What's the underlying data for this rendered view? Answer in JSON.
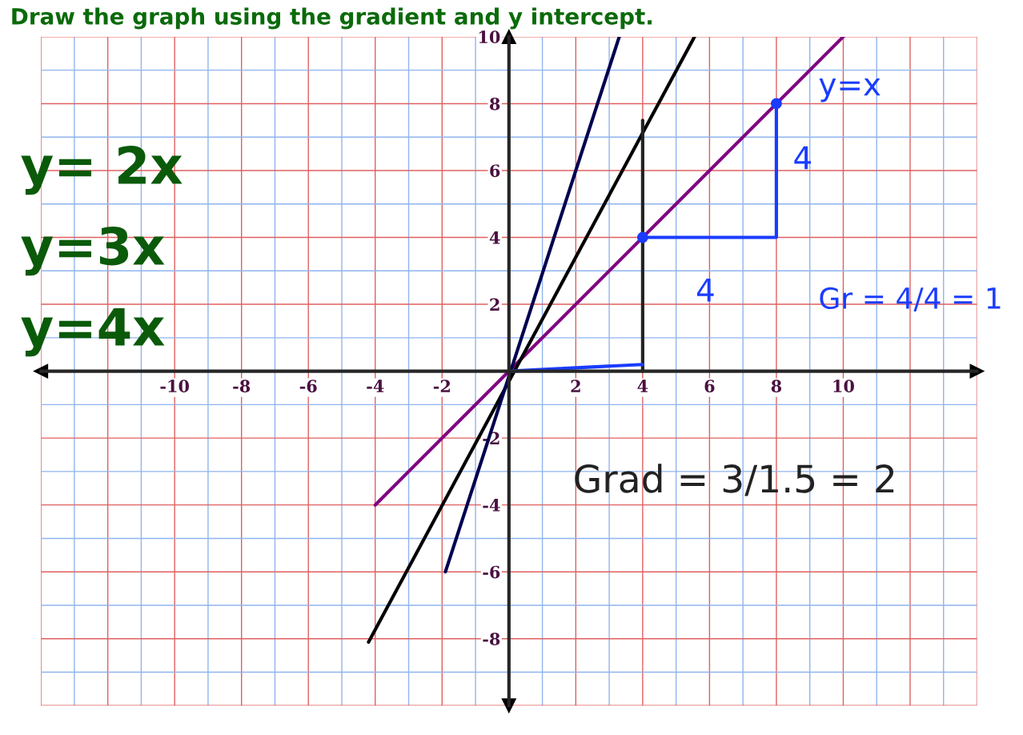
{
  "chart_data": {
    "type": "line",
    "title": "Draw the graph using the gradient and y intercept.",
    "series": [
      {
        "color": "#800080",
        "x": [
          -4,
          10
        ],
        "values": [
          -4,
          10
        ]
      },
      {
        "color": "#000000",
        "x": [
          -4.2,
          5.55
        ],
        "values": [
          -8.1,
          10
        ]
      },
      {
        "color": "#000050",
        "x": [
          -1.9,
          3.3
        ],
        "values": [
          -6,
          10
        ]
      },
      {
        "color": "#222222",
        "x": [
          4,
          4
        ],
        "values": [
          0,
          7.5
        ]
      },
      {
        "color": "#1a3cff",
        "x": [
          0,
          4
        ],
        "values": [
          0,
          0.2
        ]
      },
      {
        "color": "#1a3cff",
        "x": [
          4,
          8,
          8
        ],
        "values": [
          4,
          4,
          8
        ]
      },
      {
        "color": "#1a3cff",
        "type": "scatter",
        "x": [
          4,
          8
        ],
        "values": [
          4,
          8
        ]
      }
    ],
    "xlim": [
      -14,
      14
    ],
    "ylim": [
      -10,
      10
    ],
    "xticks": [
      {
        "value": -14,
        "label": null
      },
      {
        "value": -13,
        "label": null
      },
      {
        "value": -12,
        "label": null
      },
      {
        "value": -11,
        "label": null
      },
      -10,
      {
        "value": -9,
        "label": null
      },
      -8,
      {
        "value": -7,
        "label": null
      },
      -6,
      {
        "value": -5,
        "label": null
      },
      -4,
      {
        "value": -3,
        "label": null
      },
      -2,
      {
        "value": -1,
        "label": null
      },
      {
        "value": 1,
        "label": null
      },
      2,
      {
        "value": 3,
        "label": null
      },
      4,
      {
        "value": 5,
        "label": null
      },
      6,
      {
        "value": 7,
        "label": null
      },
      8,
      {
        "value": 9,
        "label": null
      },
      10,
      {
        "value": 11,
        "label": null
      },
      {
        "value": 12,
        "label": null
      },
      {
        "value": 13,
        "label": null
      },
      {
        "value": 14,
        "label": null
      }
    ],
    "yticks": [
      {
        "value": -10,
        "label": null
      },
      {
        "value": -9,
        "label": null
      },
      -8,
      {
        "value": -7,
        "label": null
      },
      -6,
      {
        "value": -5,
        "label": null
      },
      -4,
      {
        "value": -3,
        "label": null
      },
      -2,
      {
        "value": -1,
        "label": null
      },
      {
        "value": 1,
        "label": null
      },
      2,
      {
        "value": 3,
        "label": null
      },
      4,
      {
        "value": 5,
        "label": null
      },
      6,
      {
        "value": 7,
        "label": null
      },
      8,
      {
        "value": 9,
        "label": null
      },
      10
    ],
    "grid": true,
    "annotations": [
      "y= 2x",
      "y=3x",
      "y=4x",
      "y=x",
      "4",
      "4",
      "Gr = 4/4 = 1",
      "Grad = 3/1.5 = 2"
    ]
  }
}
